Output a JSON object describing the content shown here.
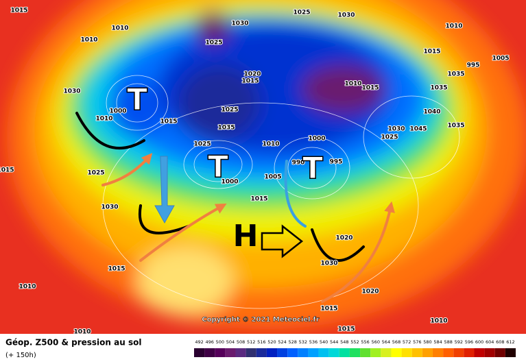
{
  "title": "Géop. Z500 & pression au sol",
  "subtitle": "(+ 150h)",
  "copyright": "Copyright © 2021 Meteociel.fr",
  "pressure_centers": [
    "T",
    "T",
    "T",
    "H"
  ],
  "isobar_labels": [
    1015,
    1010,
    1010,
    1025,
    1030,
    1025,
    1030,
    1010,
    1015,
    1005,
    995,
    1035,
    1020,
    1015,
    1010,
    1015,
    1035,
    1030,
    1000,
    1010,
    1015,
    1025,
    1035,
    1040,
    1045,
    1035,
    1030,
    1025,
    1025,
    1010,
    1000,
    1000,
    990,
    995,
    1005,
    1025,
    1015,
    1030,
    1015,
    1020,
    1015,
    1010,
    1030,
    1020,
    1015,
    1015,
    1010,
    1010
  ],
  "scale": {
    "values": [
      492,
      496,
      500,
      504,
      508,
      512,
      516,
      520,
      524,
      528,
      532,
      536,
      540,
      544,
      548,
      552,
      556,
      560,
      564,
      568,
      572,
      576,
      580,
      584,
      588,
      592,
      596,
      600,
      604,
      608,
      612
    ],
    "colors": [
      "#2a0030",
      "#3f0045",
      "#55005a",
      "#6a1b6e",
      "#5a2a80",
      "#303070",
      "#1a2a9a",
      "#0020c0",
      "#0040e0",
      "#0060ff",
      "#0080ff",
      "#00a0ff",
      "#00c0f0",
      "#00d8d8",
      "#00e0a0",
      "#20e060",
      "#60e030",
      "#a0f020",
      "#d8f020",
      "#ffff00",
      "#ffe000",
      "#ffc000",
      "#ffa000",
      "#ff8000",
      "#ff6000",
      "#f04000",
      "#e02000",
      "#c00000",
      "#a00000",
      "#700000",
      "#200000"
    ]
  }
}
